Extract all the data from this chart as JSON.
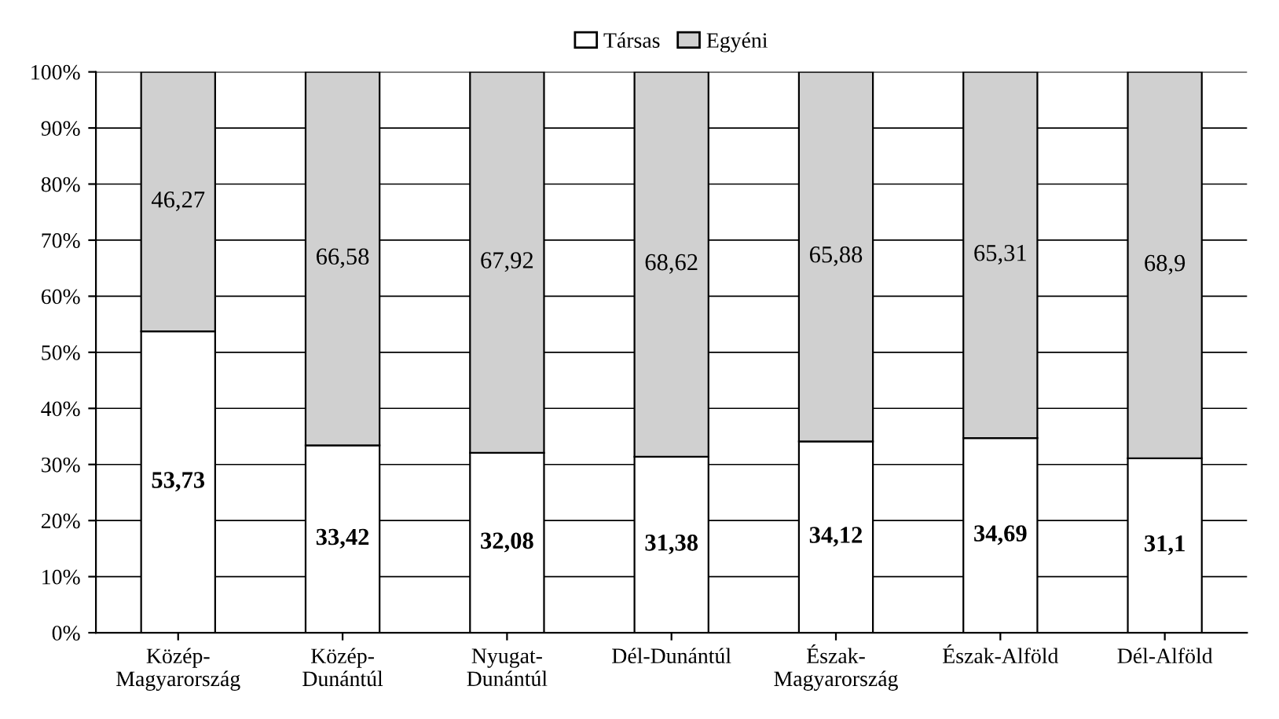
{
  "chart_data": {
    "type": "bar",
    "stacked": true,
    "categories": [
      "Közép-\nMagyarország",
      "Közép-\nDunántúl",
      "Nyugat-\nDunántúl",
      "Dél-Dunántúl",
      "Észak-\nMagyarország",
      "Észak-Alföld",
      "Dél-Alföld"
    ],
    "series": [
      {
        "name": "Társas",
        "color": "#ffffff",
        "values": [
          53.73,
          33.42,
          32.08,
          31.38,
          34.12,
          34.69,
          31.1
        ],
        "value_labels": [
          "53,73",
          "33,42",
          "32,08",
          "31,38",
          "34,12",
          "34,69",
          "31,1"
        ]
      },
      {
        "name": "Egyéni",
        "color": "#d0d0d0",
        "values": [
          46.27,
          66.58,
          67.92,
          68.62,
          65.88,
          65.31,
          68.9
        ],
        "value_labels": [
          "46,27",
          "66,58",
          "67,92",
          "68,62",
          "65,88",
          "65,31",
          "68,9"
        ]
      }
    ],
    "ylim": [
      0,
      100
    ],
    "yticks": [
      {
        "value": 0,
        "label": "0%"
      },
      {
        "value": 10,
        "label": "10%"
      },
      {
        "value": 20,
        "label": "20%"
      },
      {
        "value": 30,
        "label": "30%"
      },
      {
        "value": 40,
        "label": "40%"
      },
      {
        "value": 50,
        "label": "50%"
      },
      {
        "value": 60,
        "label": "60%"
      },
      {
        "value": 70,
        "label": "70%"
      },
      {
        "value": 80,
        "label": "80%"
      },
      {
        "value": 90,
        "label": "90%"
      },
      {
        "value": 100,
        "label": "100%"
      }
    ],
    "grid": "y",
    "legend": "top"
  }
}
